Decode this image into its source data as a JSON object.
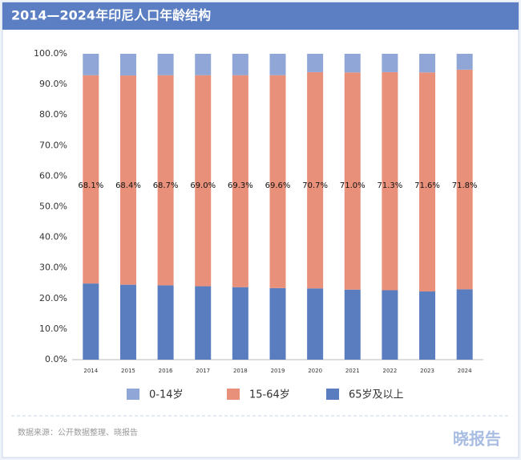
{
  "chart_data": {
    "type": "stacked_bar",
    "title": "2014—2024年印尼人口年龄结构",
    "categories": [
      "2014",
      "2015",
      "2016",
      "2017",
      "2018",
      "2019",
      "2020",
      "2021",
      "2022",
      "2023",
      "2024"
    ],
    "series": [
      {
        "name": "0-14岁",
        "color": "#8fa6d6",
        "values": [
          7.0,
          7.1,
          7.0,
          7.0,
          7.0,
          7.0,
          6.0,
          6.1,
          6.0,
          6.1,
          5.2
        ]
      },
      {
        "name": "15-64岁",
        "color": "#e8907a",
        "values": [
          68.1,
          68.4,
          68.7,
          69.0,
          69.3,
          69.6,
          70.7,
          71.0,
          71.3,
          71.6,
          71.8
        ],
        "value_labels": [
          "68.1%",
          "68.4%",
          "68.7%",
          "69.0%",
          "69.3%",
          "69.6%",
          "70.7%",
          "71.0%",
          "71.3%",
          "71.6%",
          "71.8%"
        ]
      },
      {
        "name": "65岁及以上",
        "color": "#5a7dc0",
        "values": [
          24.9,
          24.5,
          24.3,
          24.0,
          23.7,
          23.4,
          23.3,
          22.9,
          22.7,
          22.3,
          23.0
        ]
      }
    ],
    "ylim": [
      0,
      100
    ],
    "yticks": [
      {
        "value": 0,
        "label": "0.0%"
      },
      {
        "value": 10,
        "label": "10.0%"
      },
      {
        "value": 20,
        "label": "20.0%"
      },
      {
        "value": 30,
        "label": "30.0%"
      },
      {
        "value": 40,
        "label": "40.0%"
      },
      {
        "value": 50,
        "label": "50.0%"
      },
      {
        "value": 60,
        "label": "60.0%"
      },
      {
        "value": 70,
        "label": "70.0%"
      },
      {
        "value": 80,
        "label": "80.0%"
      },
      {
        "value": 90,
        "label": "90.0%"
      },
      {
        "value": 100,
        "label": "100.0%"
      }
    ],
    "legend": "bottom"
  },
  "footer": {
    "source": "数据来源：公开数据整理、晓报告",
    "logo": "晓报告"
  }
}
